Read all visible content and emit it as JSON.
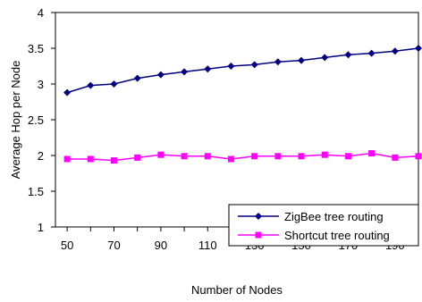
{
  "chart_data": {
    "type": "line",
    "title": "",
    "xlabel": "Number of Nodes",
    "ylabel": "Average Hop per Node",
    "x": [
      50,
      60,
      70,
      80,
      90,
      100,
      110,
      120,
      130,
      140,
      150,
      160,
      170,
      180,
      190,
      200
    ],
    "xlim": [
      45,
      200
    ],
    "x_tick_labels": [
      50,
      70,
      90,
      110,
      130,
      150,
      170,
      190
    ],
    "x_minor_ticks": [
      60,
      80,
      100,
      120,
      140,
      160,
      180
    ],
    "ylim": [
      1,
      4
    ],
    "y_ticks": [
      1,
      1.5,
      2,
      2.5,
      3,
      3.5,
      4
    ],
    "y_tick_labels": [
      "1",
      "1.5",
      "2",
      "2.5",
      "3",
      "3.5",
      "4"
    ],
    "grid": false,
    "legend_position": "bottom-right",
    "series": [
      {
        "name": "ZigBee tree routing",
        "color": "#000080",
        "marker": "diamond",
        "values": [
          2.88,
          2.98,
          3.0,
          3.08,
          3.13,
          3.17,
          3.21,
          3.25,
          3.27,
          3.31,
          3.33,
          3.37,
          3.41,
          3.43,
          3.46,
          3.5
        ]
      },
      {
        "name": "Shortcut tree routing",
        "color": "#ff00ff",
        "marker": "square",
        "values": [
          1.95,
          1.95,
          1.93,
          1.97,
          2.01,
          1.99,
          1.99,
          1.95,
          1.99,
          1.99,
          1.99,
          2.01,
          1.99,
          2.03,
          1.97,
          1.99
        ]
      }
    ]
  }
}
